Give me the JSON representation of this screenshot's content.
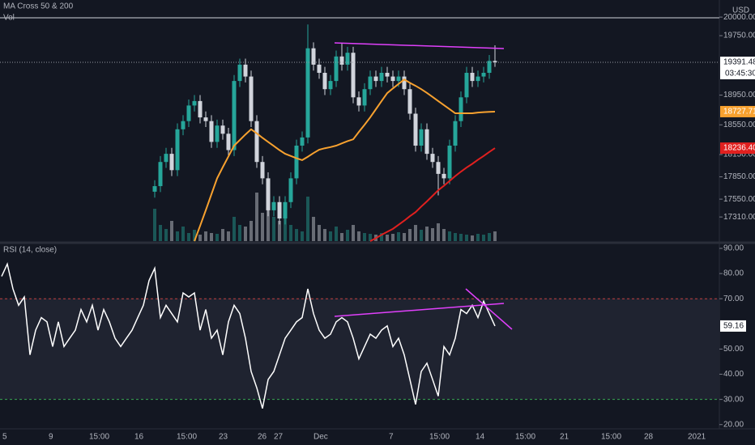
{
  "chart_data": [
    {
      "type": "candlestick",
      "title": "MA Cross 50 & 200",
      "volume_label": "Vol",
      "currency": "USD",
      "countdown": "03:45:30",
      "up_color": "#26a69a",
      "down_color": "#d1d4dc",
      "ylim": [
        16985,
        20230
      ],
      "yticks": [
        {
          "value": 20000,
          "label": "20000.00"
        },
        {
          "value": 19750,
          "label": "19750.00"
        },
        {
          "value": 18950,
          "label": "18950.00"
        },
        {
          "value": 18550,
          "label": "18550.00"
        },
        {
          "value": 18150,
          "label": "18150.00"
        },
        {
          "value": 17850,
          "label": "17850.00"
        },
        {
          "value": 17550,
          "label": "17550.00"
        },
        {
          "value": 17310,
          "label": "17310.00"
        }
      ],
      "open": [
        17650,
        17725,
        18050,
        18160,
        17940,
        18490,
        18600,
        18810,
        18870,
        18650,
        18600,
        18320,
        18540,
        18430,
        18210,
        19140,
        19360,
        19200,
        18600,
        18050,
        17830,
        17400,
        17510,
        17290,
        17510,
        17830,
        18270,
        18380,
        19580,
        19360,
        19250,
        19030,
        19140,
        19470,
        19360,
        19520,
        18920,
        18810,
        19030,
        19200,
        19140,
        19250,
        19200,
        19140,
        19200,
        19030,
        18700,
        18270,
        18490,
        18160,
        18050,
        17890,
        17830,
        18270,
        18600,
        18920,
        19250,
        19140,
        19200,
        19250,
        19410
      ],
      "high": [
        17805,
        18130,
        18240,
        18240,
        18570,
        18680,
        18890,
        18950,
        18950,
        18730,
        18680,
        18620,
        18620,
        18510,
        19220,
        19440,
        19440,
        19280,
        18680,
        18130,
        17910,
        17590,
        17590,
        17590,
        17910,
        18350,
        18460,
        19900,
        19660,
        19440,
        19330,
        19220,
        19550,
        19650,
        19600,
        19600,
        19000,
        19110,
        19280,
        19280,
        19330,
        19330,
        19280,
        19280,
        19280,
        19110,
        18780,
        18570,
        18570,
        18240,
        18130,
        17970,
        18350,
        18680,
        19000,
        19330,
        19330,
        19280,
        19330,
        19490,
        19620
      ],
      "low": [
        17570,
        17645,
        17970,
        17860,
        17860,
        18410,
        18520,
        18730,
        18570,
        18520,
        18240,
        18240,
        18350,
        18130,
        18130,
        19060,
        19120,
        18520,
        17970,
        17750,
        17320,
        17320,
        17210,
        17210,
        17430,
        17750,
        18190,
        18300,
        19280,
        19170,
        18950,
        18950,
        19060,
        19280,
        19280,
        18840,
        18730,
        18730,
        18950,
        19060,
        19060,
        19120,
        19060,
        19060,
        18950,
        18620,
        18190,
        18190,
        18080,
        17970,
        17600,
        17750,
        17750,
        18190,
        18520,
        18840,
        19060,
        19060,
        19120,
        19170,
        19330
      ],
      "close": [
        17725,
        18050,
        18160,
        17940,
        18490,
        18600,
        18810,
        18870,
        18650,
        18600,
        18320,
        18540,
        18430,
        18210,
        19140,
        19360,
        19200,
        18600,
        18050,
        17830,
        17400,
        17510,
        17290,
        17510,
        17830,
        18270,
        18380,
        19580,
        19360,
        19250,
        19030,
        19140,
        19470,
        19360,
        19520,
        18920,
        18810,
        19030,
        19200,
        19140,
        19250,
        19200,
        19140,
        19200,
        19030,
        18700,
        18270,
        18490,
        18160,
        18050,
        17890,
        17830,
        18270,
        18600,
        18920,
        19250,
        19140,
        19200,
        19250,
        19410,
        19391.48
      ],
      "volume": [
        40,
        20,
        15,
        25,
        12,
        18,
        10,
        14,
        8,
        12,
        10,
        9,
        15,
        12,
        30,
        20,
        18,
        25,
        60,
        35,
        45,
        30,
        25,
        28,
        20,
        15,
        12,
        55,
        30,
        20,
        15,
        12,
        18,
        10,
        14,
        20,
        12,
        10,
        9,
        8,
        10,
        8,
        9,
        11,
        10,
        15,
        20,
        14,
        18,
        16,
        22,
        15,
        12,
        10,
        9,
        8,
        7,
        9,
        8,
        10,
        12
      ],
      "ma_lines": [
        {
          "color": "#f7a12f",
          "values": [
            null,
            null,
            null,
            null,
            null,
            null,
            null,
            16985,
            17190,
            17400,
            17615,
            17830,
            17980,
            18125,
            18270,
            18345,
            18420,
            18490,
            18435,
            18375,
            18320,
            18265,
            18210,
            18160,
            18130,
            18100,
            18075,
            18120,
            18170,
            18215,
            18235,
            18250,
            18270,
            18300,
            18330,
            18355,
            18455,
            18550,
            18650,
            18760,
            18870,
            18977,
            19040,
            19100,
            19160,
            19115,
            19075,
            19030,
            18980,
            18925,
            18870,
            18815,
            18760,
            18705,
            18705,
            18705,
            18705,
            18715,
            18720,
            18725,
            18727.71
          ]
        },
        {
          "color": "#e0201f",
          "last_value_label": "18236.40",
          "values": [
            null,
            null,
            null,
            null,
            null,
            null,
            null,
            null,
            null,
            null,
            null,
            null,
            null,
            null,
            null,
            null,
            null,
            null,
            null,
            null,
            null,
            null,
            null,
            null,
            null,
            null,
            null,
            null,
            null,
            null,
            null,
            null,
            null,
            null,
            null,
            null,
            null,
            null,
            16985,
            17025,
            17070,
            17110,
            17150,
            17205,
            17260,
            17320,
            17375,
            17450,
            17520,
            17595,
            17670,
            17730,
            17795,
            17860,
            17920,
            17975,
            18025,
            18080,
            18130,
            18185,
            18236.4
          ]
        }
      ],
      "x_labels": [
        "5",
        "9",
        "15:00",
        "16",
        "15:00",
        "23",
        "26",
        "27",
        "Dec",
        "7",
        "15:00",
        "14",
        "15:00",
        "21",
        "15:00",
        "28",
        "2021"
      ]
    },
    {
      "type": "line",
      "title": "RSI (14, close)",
      "color": "#ffffff",
      "ylim": [
        15.1,
        91.6
      ],
      "yticks": [
        {
          "value": 90,
          "label": "90.00"
        },
        {
          "value": 80,
          "label": "80.00"
        },
        {
          "value": 70,
          "label": "70.00"
        },
        {
          "value": 50,
          "label": "50.00"
        },
        {
          "value": 40,
          "label": "40.00"
        },
        {
          "value": 30,
          "label": "30.00"
        },
        {
          "value": 20,
          "label": "20.00"
        }
      ],
      "upper_band": 70,
      "lower_band": 30,
      "upper_color": "#c2403f",
      "lower_color": "#3aa655",
      "values": [
        78.9,
        83.8,
        73.9,
        67.4,
        70.7,
        47.7,
        57.5,
        62.5,
        60.8,
        51.0,
        60.8,
        51.0,
        54.3,
        57.5,
        65.7,
        60.8,
        67.4,
        57.5,
        65.7,
        60.8,
        54.3,
        51.0,
        54.3,
        57.5,
        62.5,
        67.4,
        77.2,
        82.1,
        62.5,
        67.4,
        64.1,
        60.8,
        72.3,
        70.7,
        72.3,
        57.5,
        65.7,
        54.3,
        57.5,
        47.7,
        60.8,
        67.4,
        64.1,
        54.3,
        41.1,
        34.6,
        26.4,
        37.9,
        41.1,
        47.7,
        54.3,
        57.5,
        60.8,
        62.5,
        73.9,
        64.1,
        57.5,
        54.3,
        55.9,
        60.8,
        62.5,
        60.8,
        54.3,
        46.1,
        51.0,
        55.9,
        54.3,
        57.5,
        59.2,
        51.0,
        54.3,
        47.7,
        37.9,
        28.0,
        41.1,
        44.4,
        37.9,
        31.3,
        51.0,
        47.7,
        54.3,
        65.7,
        64.1,
        67.4,
        62.5,
        69.0,
        64.1,
        59.16
      ]
    }
  ]
}
